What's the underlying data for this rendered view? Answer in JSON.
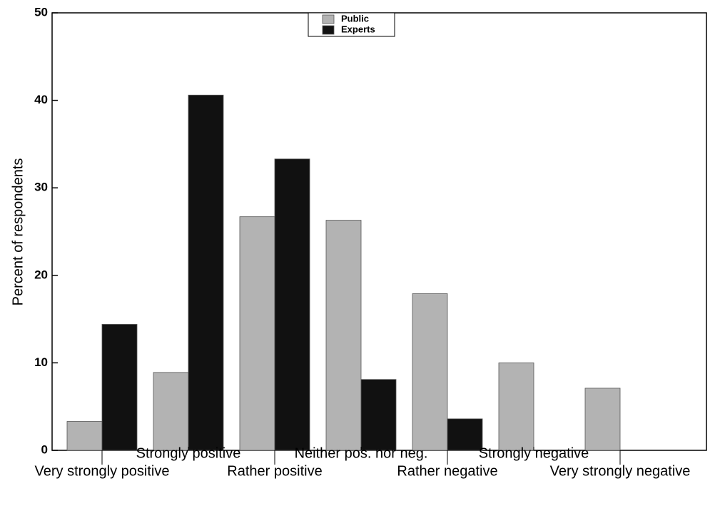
{
  "chart_data": {
    "type": "bar",
    "y_label": "Percent of respondents",
    "categories": [
      "Very strongly positive",
      "Strongly positive",
      "Rather positive",
      "Neither pos. nor neg.",
      "Rather negative",
      "Strongly negative",
      "Very strongly negative"
    ],
    "series": [
      {
        "name": "Public",
        "color": "#b3b3b3",
        "values": [
          3.3,
          8.9,
          26.7,
          26.3,
          17.9,
          10,
          7.1
        ]
      },
      {
        "name": "Experts",
        "color": "#111111",
        "values": [
          14.4,
          40.6,
          33.3,
          8.1,
          3.6,
          0,
          0
        ]
      }
    ],
    "ylim": [
      0,
      50
    ],
    "yticks": [
      0,
      10,
      20,
      30,
      40,
      50
    ],
    "legend": "top-center"
  }
}
